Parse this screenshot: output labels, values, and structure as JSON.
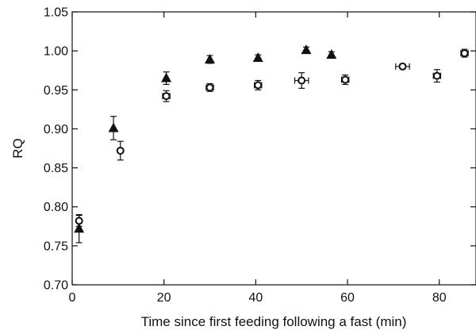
{
  "chart_data": {
    "type": "scatter",
    "xlabel": "Time since first feeding following a fast (min)",
    "ylabel": "RQ",
    "xlim": [
      0,
      88
    ],
    "ylim": [
      0.7,
      1.05
    ],
    "x_ticks": [
      0,
      20,
      40,
      60,
      80
    ],
    "x_tick_labels": [
      "0",
      "20",
      "40",
      "60",
      "80"
    ],
    "y_ticks": [
      0.7,
      0.75,
      0.8,
      0.85,
      0.9,
      0.95,
      1.0,
      1.05
    ],
    "y_tick_labels": [
      "0.70",
      "0.75",
      "0.80",
      "0.85",
      "0.90",
      "0.95",
      "1.00",
      "1.05"
    ],
    "grid": false,
    "legend": "none",
    "series": [
      {
        "marker": "triangle-filled",
        "color": "#111111",
        "points": [
          {
            "x": 1.5,
            "y": 0.772,
            "yerr": 0.018
          },
          {
            "x": 9,
            "y": 0.901,
            "yerr": 0.015
          },
          {
            "x": 20.5,
            "y": 0.965,
            "yerr": 0.008
          },
          {
            "x": 30,
            "y": 0.989,
            "yerr": 0.005
          },
          {
            "x": 40.5,
            "y": 0.991,
            "yerr": 0.004
          },
          {
            "x": 51,
            "y": 1.001,
            "yerr": 0.004
          },
          {
            "x": 56.5,
            "y": 0.995,
            "yerr": 0.004
          }
        ]
      },
      {
        "marker": "circle-open",
        "color": "#111111",
        "points": [
          {
            "x": 1.5,
            "y": 0.782,
            "yerr": 0.007,
            "xerr": 0
          },
          {
            "x": 10.5,
            "y": 0.872,
            "yerr": 0.012,
            "xerr": 0
          },
          {
            "x": 20.5,
            "y": 0.942,
            "yerr": 0.007,
            "xerr": 0.8
          },
          {
            "x": 30,
            "y": 0.953,
            "yerr": 0.005,
            "xerr": 0.8
          },
          {
            "x": 40.5,
            "y": 0.956,
            "yerr": 0.006,
            "xerr": 0.8
          },
          {
            "x": 50,
            "y": 0.962,
            "yerr": 0.01,
            "xerr": 1.5
          },
          {
            "x": 59.5,
            "y": 0.963,
            "yerr": 0.006,
            "xerr": 0.8
          },
          {
            "x": 72,
            "y": 0.98,
            "yerr": 0.003,
            "xerr": 1.5
          },
          {
            "x": 79.5,
            "y": 0.968,
            "yerr": 0.008,
            "xerr": 0.8
          },
          {
            "x": 85.5,
            "y": 0.997,
            "yerr": 0.005,
            "xerr": 0.8
          }
        ]
      }
    ]
  }
}
